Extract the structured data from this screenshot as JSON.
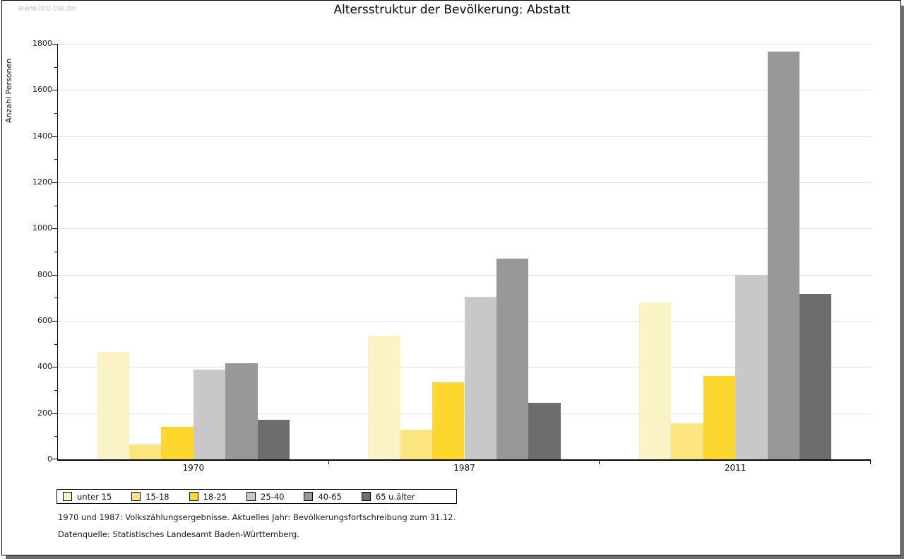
{
  "watermark": "www.leo-bw.de",
  "title": "Altersstruktur der Bevölkerung: Abstatt",
  "footnotes": {
    "line1": "1970 und 1987: Volkszählungsergebnisse. Aktuelles Jahr: Bevölkerungsfortschreibung zum 31.12.",
    "line2": "Datenquelle: Statistisches Landesamt Baden-Württemberg."
  },
  "chart_data": {
    "type": "bar",
    "title": "Altersstruktur der Bevölkerung: Abstatt",
    "ylabel": "Anzahl Personen",
    "xlabel": "",
    "categories": [
      "1970",
      "1987",
      "2011"
    ],
    "series": [
      {
        "name": "unter 15",
        "color": "#FAF3C5",
        "values": [
          465,
          535,
          680
        ]
      },
      {
        "name": "15-18",
        "color": "#FCE57F",
        "values": [
          65,
          130,
          155
        ]
      },
      {
        "name": "18-25",
        "color": "#FDD62E",
        "values": [
          140,
          335,
          360
        ]
      },
      {
        "name": "25-40",
        "color": "#C8C8C8",
        "values": [
          390,
          705,
          800
        ]
      },
      {
        "name": "40-65",
        "color": "#989898",
        "values": [
          415,
          870,
          1765
        ]
      },
      {
        "name": "65 u.älter",
        "color": "#6D6D6D",
        "values": [
          170,
          245,
          715
        ]
      }
    ],
    "ylim": [
      0,
      1800
    ],
    "ytick_step": 200,
    "yminortick_step": 100,
    "grid": true,
    "legend_position": "bottom",
    "axis_color": "#000000",
    "grid_color": "#E0E0E0",
    "shadow_color": "#6E6E6E"
  }
}
